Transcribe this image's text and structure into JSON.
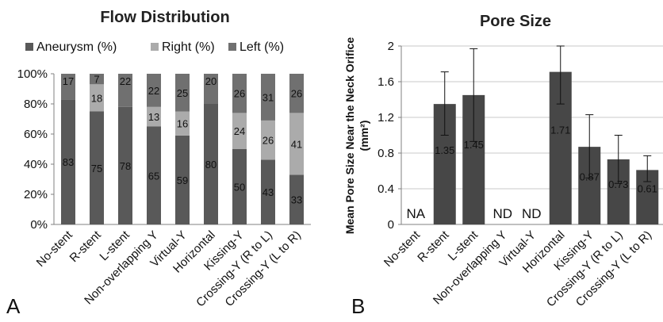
{
  "chart_data": [
    {
      "type": "bar",
      "stacked": true,
      "panel": "A",
      "title": "Flow Distribution",
      "categories": [
        "No-stent",
        "R-stent",
        "L-stent",
        "Non-overlapping Y",
        "Virtual-Y",
        "Horizontal",
        "Kissing-Y",
        "Crossing-Y (R to L)",
        "Crossing-Y (L to R)"
      ],
      "series": [
        {
          "name": "Aneurysm (%)",
          "color": "#595959",
          "values": [
            83,
            75,
            78,
            65,
            59,
            80,
            50,
            43,
            33
          ]
        },
        {
          "name": "Right (%)",
          "color": "#ababab",
          "values": [
            0,
            18,
            0,
            13,
            16,
            0,
            24,
            26,
            41
          ]
        },
        {
          "name": "Left (%)",
          "color": "#707070",
          "values": [
            17,
            7,
            22,
            22,
            25,
            20,
            26,
            31,
            26
          ]
        }
      ],
      "ylim": [
        0,
        100
      ],
      "yticks": [
        "0%",
        "20%",
        "40%",
        "60%",
        "80%",
        "100%"
      ],
      "legend": "top",
      "grid": false
    },
    {
      "type": "bar",
      "panel": "B",
      "title": "Pore Size",
      "ylabel_line1": "Mean Pore Size Near the Neck Orifice",
      "ylabel_line2": "(mm²)",
      "categories": [
        "No-stent",
        "R-stent",
        "L-stent",
        "Non-overlapping Y",
        "Virtual-Y",
        "Horizontal",
        "Kissing-Y",
        "Crossing-Y (R to L)",
        "Crossing-Y (L to R)"
      ],
      "values": [
        null,
        1.35,
        1.45,
        null,
        null,
        1.71,
        0.87,
        0.73,
        0.61
      ],
      "value_labels": [
        "NA",
        "1.35",
        "1.45",
        "ND",
        "ND",
        "1.71",
        "0.87",
        "0.73",
        "0.61"
      ],
      "error_low": [
        null,
        1.0,
        0.93,
        null,
        null,
        1.35,
        0.52,
        0.46,
        0.48
      ],
      "error_high": [
        null,
        1.71,
        1.97,
        null,
        null,
        2.0,
        1.23,
        1.0,
        0.77
      ],
      "bar_color": "#474747",
      "ylim": [
        0,
        2
      ],
      "yticks": [
        "0",
        "0.4",
        "0.8",
        "1.2",
        "1.6",
        "2"
      ],
      "grid": true
    }
  ]
}
